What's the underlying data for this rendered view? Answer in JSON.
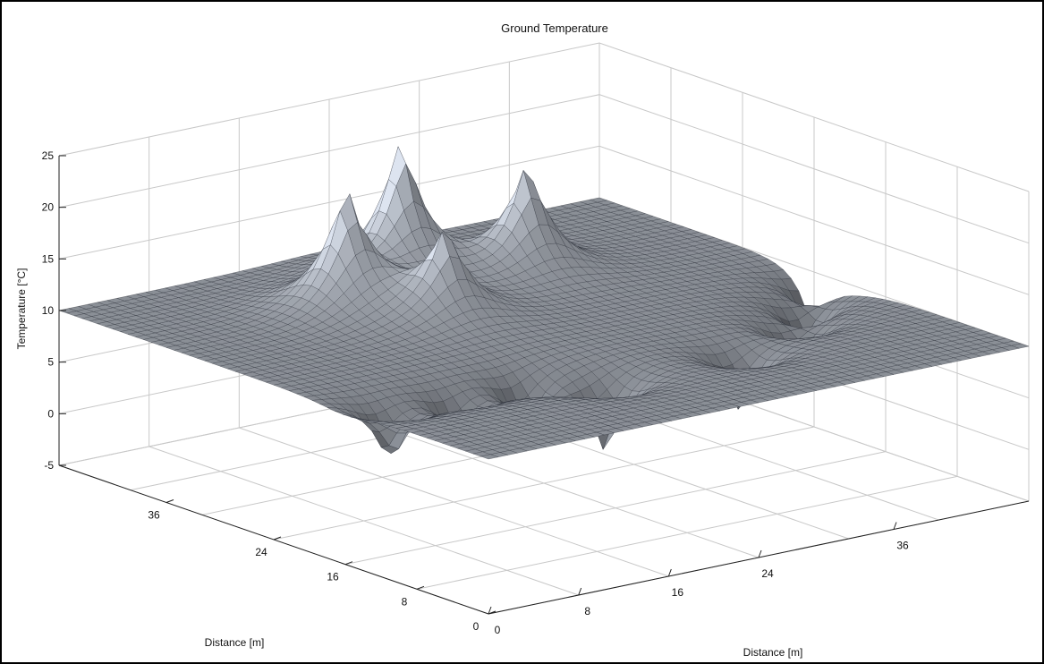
{
  "chart_data": {
    "type": "surface3d",
    "title": "Ground Temperature",
    "zlabel": "Temperature [°C]",
    "xlabel": "Distance [m]",
    "ylabel": "Distance [m]",
    "zticks": [
      25,
      20,
      15,
      10,
      5,
      0,
      -5
    ],
    "zlim": [
      -5,
      25
    ],
    "xticks": [
      "0",
      "8",
      "16",
      "24",
      "36"
    ],
    "yticks": [
      "0",
      "8",
      "16",
      "24",
      "36"
    ],
    "xlim": [
      0,
      48
    ],
    "ylim": [
      0,
      48
    ],
    "grid": true,
    "colormap": "bone",
    "background_temperature": 10,
    "heat_sources": [
      {
        "x": 16,
        "y": 36,
        "peak": 22
      },
      {
        "x": 20,
        "y": 30,
        "peak": 19
      },
      {
        "x": 24,
        "y": 40,
        "peak": 24
      },
      {
        "x": 32,
        "y": 36,
        "peak": 21
      }
    ],
    "cold_sinks": [
      {
        "x": 4,
        "y": 16,
        "min": -2
      },
      {
        "x": 10,
        "y": 16,
        "min": -2
      },
      {
        "x": 16,
        "y": 16,
        "min": -3
      },
      {
        "x": 20,
        "y": 12,
        "min": -5
      },
      {
        "x": 32,
        "y": 12,
        "min": -3
      },
      {
        "x": 40,
        "y": 16,
        "min": -2
      },
      {
        "x": 44,
        "y": 20,
        "min": -2
      },
      {
        "x": 48,
        "y": 24,
        "min": -2
      }
    ]
  }
}
